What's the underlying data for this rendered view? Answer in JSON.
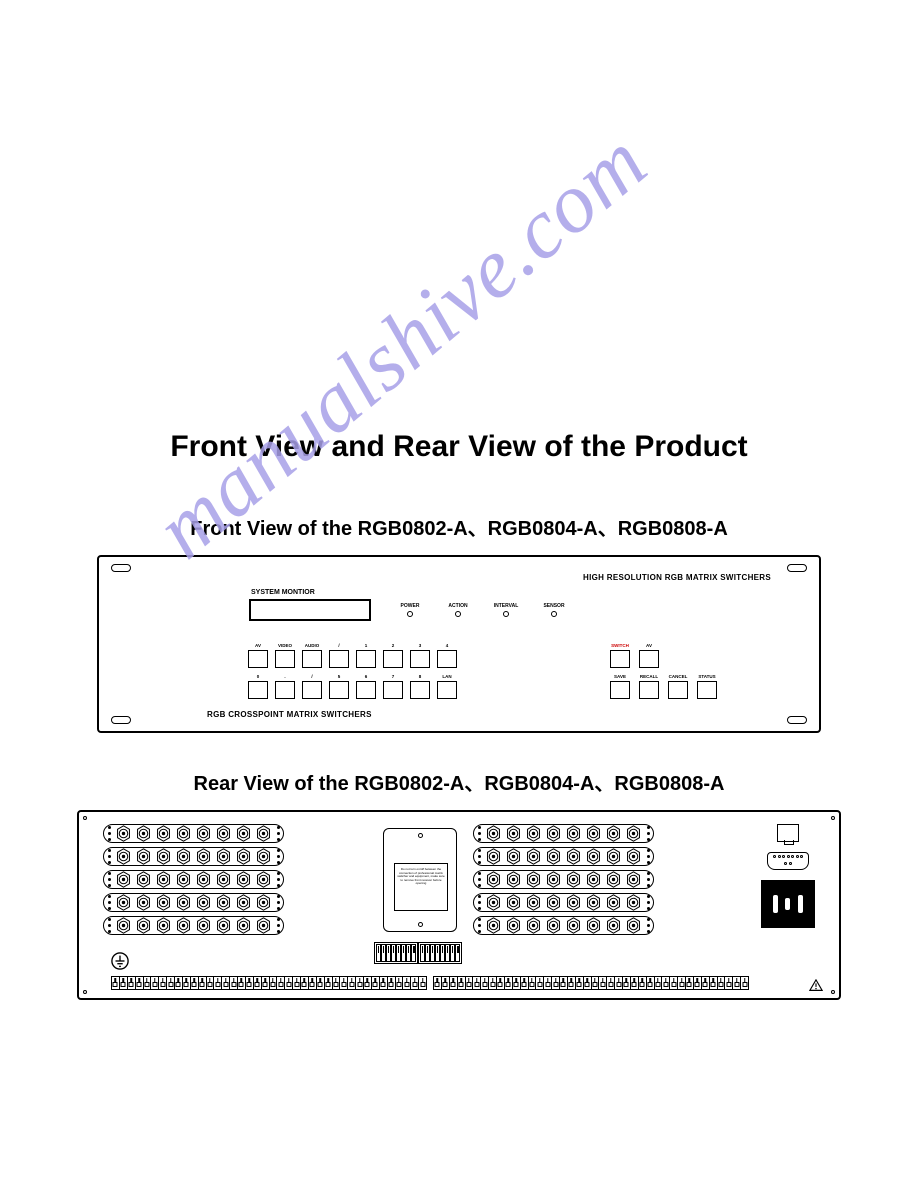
{
  "watermark_text": "manualshive.com",
  "watermark_color": "#a8a0e8",
  "main_title": "Front View and Rear View of the Product",
  "main_title_fontsize": 30,
  "front_view_subtitle": "Front View of the RGB0802-A、RGB0804-A、RGB0808-A",
  "rear_view_subtitle": "Rear View of the RGB0802-A、RGB0804-A、RGB0808-A",
  "subtitle_fontsize": 20,
  "page_bg": "#ffffff",
  "fg": "#000000",
  "front_panel": {
    "top_right_text": "HIGH RESOLUTION  RGB MATRIX SWITCHERS",
    "system_monitor_label": "SYSTEM MONTIOR",
    "bottom_left_text": "RGB CROSSPOINT MATRIX SWITCHERS",
    "leds": [
      "POWER",
      "ACTION",
      "INTERVAL",
      "SENSOR"
    ],
    "keypad_row1": [
      "AV",
      "VIDEO",
      "AUDIO",
      "/",
      "1",
      "2",
      "3",
      "4"
    ],
    "keypad_row2": [
      "0",
      ".",
      "/",
      "5",
      "6",
      "7",
      "8",
      "LAN"
    ],
    "right_row1": [
      "SWITCH",
      "AV"
    ],
    "right_row2": [
      "SAVE",
      "RECALL",
      "CANCEL",
      "STATUS"
    ],
    "red_labels": [
      "SWITCH"
    ]
  },
  "rear_panel": {
    "bnc_rows_per_bank": 5,
    "bnc_per_row": 8,
    "bnc_banks": 2,
    "center_box_lines": [
      "",
      "Do not turn on/off between the",
      "connection of professional",
      "matrix switcher and equipment,",
      "make sure to remove front",
      "receiver before opening"
    ],
    "dip_count_per_block": 8,
    "terminal_pins_per_strip": 40,
    "connectors": {
      "rj45": true,
      "db9": true,
      "iec_power": true
    }
  }
}
